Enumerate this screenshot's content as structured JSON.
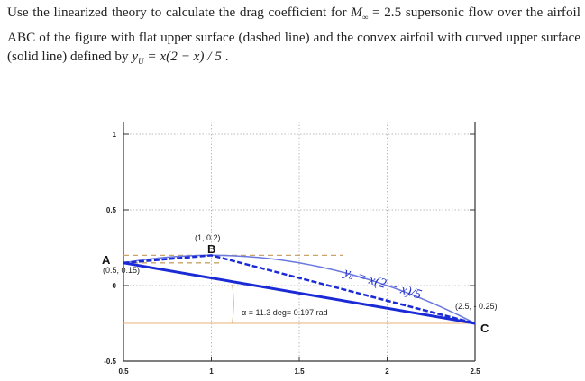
{
  "problem": {
    "text_1": "Use the linearized theory to calculate the drag coefficient for ",
    "mach_symbol": "M",
    "mach_sub": "∞",
    "mach_value": " = 2.5",
    "text_2": " supersonic flow over the airfoil ABC of the figure with flat upper surface (dashed line) and the convex airfoil with curved upper surface (solid line) defined by ",
    "eq_y": "y",
    "eq_sub": "U",
    "eq_rhs": " = x(2 − x) / 5",
    "text_end": " ."
  },
  "chart_data": {
    "type": "line",
    "xlim": [
      0.5,
      2.5
    ],
    "ylim": [
      -0.5,
      1
    ],
    "x_ticks": [
      "0.5",
      "1",
      "1.5",
      "2",
      "2.5"
    ],
    "y_ticks": [
      "1",
      "0.5",
      "0",
      "-0.5"
    ],
    "grid": true,
    "series": [
      {
        "role": "lower surface (solid)",
        "x": [
          0.5,
          2.5
        ],
        "y": [
          0.15,
          -0.25
        ],
        "color": "#1a2bd6"
      },
      {
        "role": "flat upper surface (dashed)",
        "x": [
          0.5,
          1,
          2.5
        ],
        "y": [
          0.15,
          0.2,
          -0.25
        ],
        "color": "#1a2bd6"
      },
      {
        "role": "curved upper surface",
        "equation": "x(2-x)/5",
        "x": [
          0.5,
          2.5
        ],
        "color": "#6a78e0"
      }
    ],
    "reference_lines": [
      {
        "y": 0.2,
        "x": [
          0.5,
          1.75
        ],
        "style": "dashed",
        "color": "#c9a36a"
      },
      {
        "y": 0.15,
        "x": [
          0.5,
          1.05
        ],
        "style": "dashed",
        "color": "#c9a36a"
      },
      {
        "y": -0.25,
        "x": [
          0.5,
          2.5
        ],
        "style": "solid",
        "color": "#e8b27a"
      }
    ],
    "points": [
      {
        "name": "A",
        "coord_label": "(0.5, 0.15)"
      },
      {
        "name": "B",
        "coord_label": "(1,  0.2)"
      },
      {
        "name": "C",
        "coord_label": "(2.5, - 0.25)"
      }
    ],
    "annotations": {
      "curve_label": "yᵤ = x(2 − x)/5",
      "angle_label": "α = 11.3 deg= 0.197 rad"
    }
  }
}
